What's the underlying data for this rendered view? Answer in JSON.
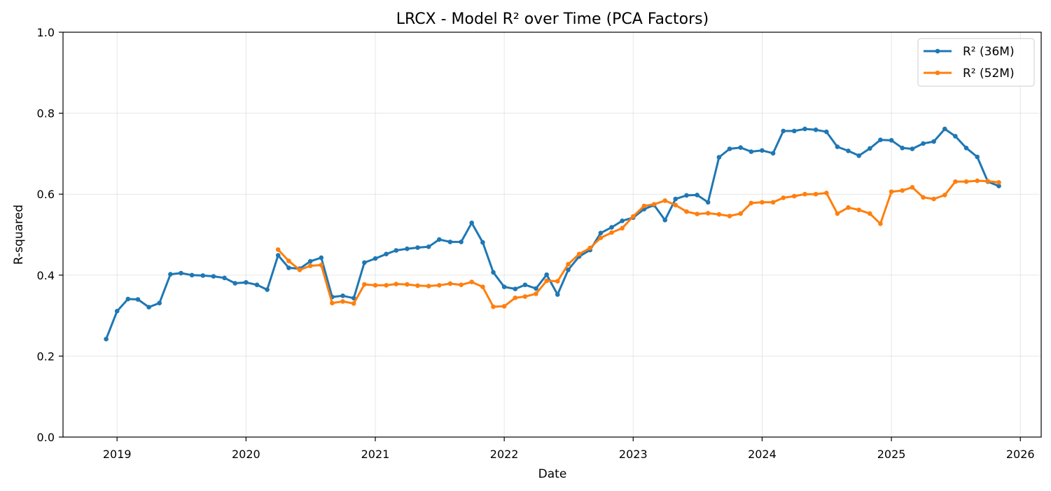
{
  "chart_data": {
    "type": "line",
    "title": "LRCX - Model R² over Time (PCA Factors)",
    "xlabel": "Date",
    "ylabel": "R-squared",
    "xlim": [
      "2018-08-01",
      "2026-03-01"
    ],
    "ylim": [
      0,
      1
    ],
    "x_ticks": [
      "2019",
      "2020",
      "2021",
      "2022",
      "2023",
      "2024",
      "2025",
      "2026"
    ],
    "y_ticks": [
      "0.0",
      "0.2",
      "0.4",
      "0.6",
      "0.8",
      "1.0"
    ],
    "grid": true,
    "legend_position": "top-right",
    "series": [
      {
        "name": "R² (36M)",
        "color": "#1f77b4",
        "x": [
          "2018-12-01",
          "2019-01-01",
          "2019-02-01",
          "2019-03-01",
          "2019-04-01",
          "2019-05-01",
          "2019-06-01",
          "2019-07-01",
          "2019-08-01",
          "2019-09-01",
          "2019-10-01",
          "2019-11-01",
          "2019-12-01",
          "2020-01-01",
          "2020-02-01",
          "2020-03-01",
          "2020-04-01",
          "2020-05-01",
          "2020-06-01",
          "2020-07-01",
          "2020-08-01",
          "2020-09-01",
          "2020-10-01",
          "2020-11-01",
          "2020-12-01",
          "2021-01-01",
          "2021-02-01",
          "2021-03-01",
          "2021-04-01",
          "2021-05-01",
          "2021-06-01",
          "2021-07-01",
          "2021-08-01",
          "2021-09-01",
          "2021-10-01",
          "2021-11-01",
          "2021-12-01",
          "2022-01-01",
          "2022-02-01",
          "2022-03-01",
          "2022-04-01",
          "2022-05-01",
          "2022-06-01",
          "2022-07-01",
          "2022-08-01",
          "2022-09-01",
          "2022-10-01",
          "2022-11-01",
          "2022-12-01",
          "2023-01-01",
          "2023-02-01",
          "2023-03-01",
          "2023-04-01",
          "2023-05-01",
          "2023-06-01",
          "2023-07-01",
          "2023-08-01",
          "2023-09-01",
          "2023-10-01",
          "2023-11-01",
          "2023-12-01",
          "2024-01-01",
          "2024-02-01",
          "2024-03-01",
          "2024-04-01",
          "2024-05-01",
          "2024-06-01",
          "2024-07-01",
          "2024-08-01",
          "2024-09-01",
          "2024-10-01",
          "2024-11-01",
          "2024-12-01",
          "2025-01-01",
          "2025-02-01",
          "2025-03-01",
          "2025-04-01",
          "2025-05-01",
          "2025-06-01",
          "2025-07-01",
          "2025-08-01",
          "2025-09-01",
          "2025-10-01",
          "2025-11-01"
        ],
        "values": [
          0.242,
          0.311,
          0.341,
          0.34,
          0.321,
          0.331,
          0.402,
          0.405,
          0.4,
          0.399,
          0.397,
          0.393,
          0.38,
          0.382,
          0.376,
          0.364,
          0.449,
          0.418,
          0.416,
          0.434,
          0.443,
          0.346,
          0.349,
          0.343,
          0.431,
          0.441,
          0.452,
          0.461,
          0.465,
          0.468,
          0.47,
          0.488,
          0.482,
          0.482,
          0.529,
          0.481,
          0.407,
          0.371,
          0.366,
          0.376,
          0.367,
          0.401,
          0.352,
          0.413,
          0.446,
          0.462,
          0.504,
          0.518,
          0.534,
          0.542,
          0.563,
          0.573,
          0.536,
          0.588,
          0.597,
          0.598,
          0.58,
          0.691,
          0.712,
          0.715,
          0.705,
          0.708,
          0.701,
          0.756,
          0.756,
          0.761,
          0.759,
          0.754,
          0.717,
          0.707,
          0.695,
          0.713,
          0.734,
          0.733,
          0.714,
          0.712,
          0.725,
          0.73,
          0.761,
          0.743,
          0.714,
          0.692,
          0.631,
          0.62
        ]
      },
      {
        "name": "R² (52M)",
        "color": "#ff7f0e",
        "x": [
          "2020-04-01",
          "2020-05-01",
          "2020-06-01",
          "2020-07-01",
          "2020-08-01",
          "2020-09-01",
          "2020-10-01",
          "2020-11-01",
          "2020-12-01",
          "2021-01-01",
          "2021-02-01",
          "2021-03-01",
          "2021-04-01",
          "2021-05-01",
          "2021-06-01",
          "2021-07-01",
          "2021-08-01",
          "2021-09-01",
          "2021-10-01",
          "2021-11-01",
          "2021-12-01",
          "2022-01-01",
          "2022-02-01",
          "2022-03-01",
          "2022-04-01",
          "2022-05-01",
          "2022-06-01",
          "2022-07-01",
          "2022-08-01",
          "2022-09-01",
          "2022-10-01",
          "2022-11-01",
          "2022-12-01",
          "2023-01-01",
          "2023-02-01",
          "2023-03-01",
          "2023-04-01",
          "2023-05-01",
          "2023-06-01",
          "2023-07-01",
          "2023-08-01",
          "2023-09-01",
          "2023-10-01",
          "2023-11-01",
          "2023-12-01",
          "2024-01-01",
          "2024-02-01",
          "2024-03-01",
          "2024-04-01",
          "2024-05-01",
          "2024-06-01",
          "2024-07-01",
          "2024-08-01",
          "2024-09-01",
          "2024-10-01",
          "2024-11-01",
          "2024-12-01",
          "2025-01-01",
          "2025-02-01",
          "2025-03-01",
          "2025-04-01",
          "2025-05-01",
          "2025-06-01",
          "2025-07-01",
          "2025-08-01",
          "2025-09-01",
          "2025-10-01",
          "2025-11-01"
        ],
        "values": [
          0.463,
          0.435,
          0.413,
          0.423,
          0.425,
          0.331,
          0.335,
          0.33,
          0.377,
          0.375,
          0.375,
          0.378,
          0.377,
          0.374,
          0.373,
          0.375,
          0.379,
          0.376,
          0.383,
          0.371,
          0.322,
          0.323,
          0.344,
          0.347,
          0.354,
          0.386,
          0.385,
          0.427,
          0.452,
          0.467,
          0.492,
          0.505,
          0.516,
          0.545,
          0.571,
          0.575,
          0.584,
          0.573,
          0.557,
          0.551,
          0.553,
          0.55,
          0.546,
          0.552,
          0.578,
          0.58,
          0.58,
          0.591,
          0.595,
          0.6,
          0.6,
          0.603,
          0.552,
          0.567,
          0.561,
          0.552,
          0.527,
          0.606,
          0.609,
          0.617,
          0.592,
          0.588,
          0.598,
          0.631,
          0.631,
          0.633,
          0.632,
          0.629
        ]
      }
    ]
  }
}
